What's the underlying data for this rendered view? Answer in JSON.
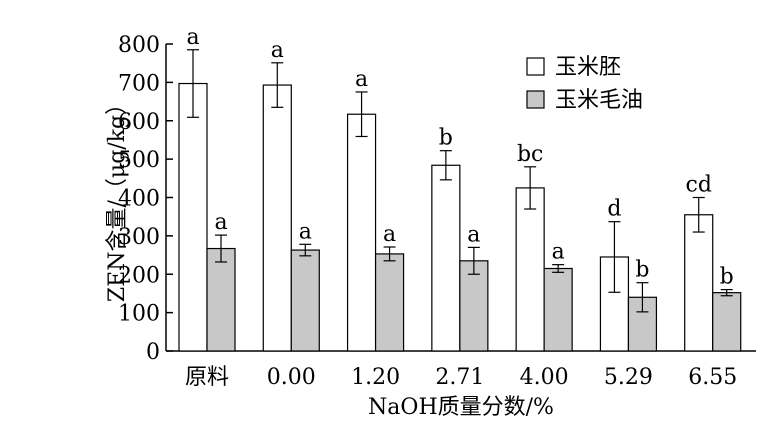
{
  "chart_data": {
    "type": "bar",
    "xlabel": "NaOH质量分数/%",
    "ylabel": "ZEN含量/（μg/kg）",
    "ylim": [
      0,
      800
    ],
    "yticks": [
      0,
      100,
      200,
      300,
      400,
      500,
      600,
      700,
      800
    ],
    "categories": [
      "原料",
      "0.00",
      "1.20",
      "2.71",
      "4.00",
      "5.29",
      "6.55"
    ],
    "legend_position": "top-right",
    "series": [
      {
        "name": "玉米胚",
        "color": "#ffffff",
        "values": [
          697,
          693,
          617,
          484,
          425,
          245,
          355
        ],
        "errors": [
          88,
          58,
          58,
          38,
          55,
          92,
          45
        ],
        "labels": [
          "a",
          "a",
          "a",
          "b",
          "bc",
          "d",
          "cd"
        ]
      },
      {
        "name": "玉米毛油",
        "color": "#c8c8c8",
        "values": [
          267,
          263,
          253,
          235,
          215,
          140,
          152
        ],
        "errors": [
          35,
          15,
          18,
          35,
          10,
          38,
          8
        ],
        "labels": [
          "a",
          "a",
          "a",
          "a",
          "a",
          "b",
          "b"
        ]
      }
    ]
  }
}
